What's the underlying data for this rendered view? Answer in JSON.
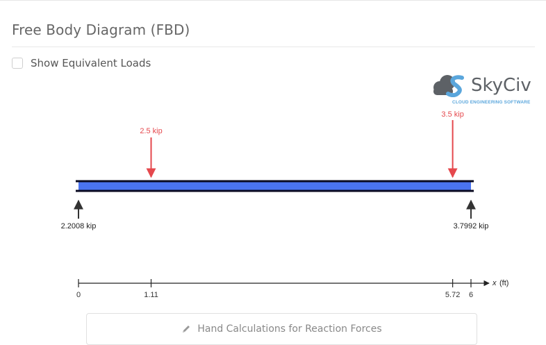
{
  "header": {
    "title": "Free Body Diagram (FBD)"
  },
  "options": {
    "equivalent_loads_label": "Show Equivalent Loads",
    "equivalent_loads_checked": false
  },
  "logo": {
    "name": "SkyCiv",
    "tagline": "CLOUD ENGINEERING SOFTWARE"
  },
  "diagram": {
    "beam_length": 6,
    "beam_color": "#4a73f0",
    "load_color": "#e5484d",
    "reaction_color": "#333333",
    "point_loads": [
      {
        "x": 1.11,
        "label": "2.5 kip"
      },
      {
        "x": 5.72,
        "label": "3.5 kip"
      }
    ],
    "reactions": [
      {
        "x": 0,
        "label": "2.2008 kip"
      },
      {
        "x": 6,
        "label": "3.7992 kip"
      }
    ],
    "axis": {
      "ticks": [
        {
          "x": 0,
          "label": "0"
        },
        {
          "x": 1.11,
          "label": "1.11"
        },
        {
          "x": 5.72,
          "label": "5.72"
        },
        {
          "x": 6,
          "label": "6"
        }
      ],
      "variable": "x",
      "unit": "(ft)"
    }
  },
  "actions": {
    "hand_calc_label": "Hand Calculations for Reaction Forces"
  }
}
